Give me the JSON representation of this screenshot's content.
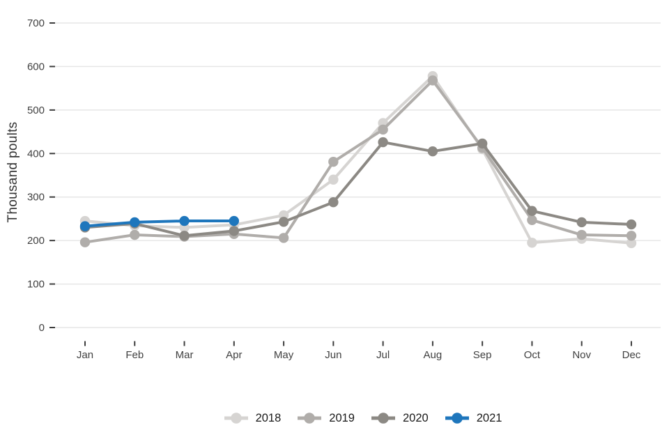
{
  "chart_data": {
    "type": "line",
    "title": "",
    "ylabel": "Thousand poults",
    "xlabel": "",
    "categories": [
      "Jan",
      "Feb",
      "Mar",
      "Apr",
      "May",
      "Jun",
      "Jul",
      "Aug",
      "Sep",
      "Oct",
      "Nov",
      "Dec"
    ],
    "ylim": [
      0,
      700
    ],
    "yticks": [
      0,
      100,
      200,
      300,
      400,
      500,
      600,
      700
    ],
    "grid": true,
    "legend_position": "bottom",
    "series": [
      {
        "name": "2018",
        "color": "#d6d4d2",
        "values": [
          245,
          234,
          230,
          236,
          258,
          340,
          470,
          578,
          410,
          195,
          204,
          194
        ]
      },
      {
        "name": "2019",
        "color": "#b0adaa",
        "values": [
          196,
          213,
          209,
          215,
          206,
          381,
          455,
          568,
          413,
          247,
          213,
          211
        ]
      },
      {
        "name": "2020",
        "color": "#8c8984",
        "values": [
          230,
          239,
          211,
          222,
          243,
          288,
          426,
          405,
          423,
          268,
          242,
          237
        ]
      },
      {
        "name": "2021",
        "color": "#1e76bc",
        "values": [
          233,
          242,
          245,
          245,
          null,
          null,
          null,
          null,
          null,
          null,
          null,
          null
        ]
      }
    ],
    "axis_text_color": "#404040",
    "tick_mark_color": "#3c3c3c",
    "gridline_color": "#e6e6e6"
  }
}
